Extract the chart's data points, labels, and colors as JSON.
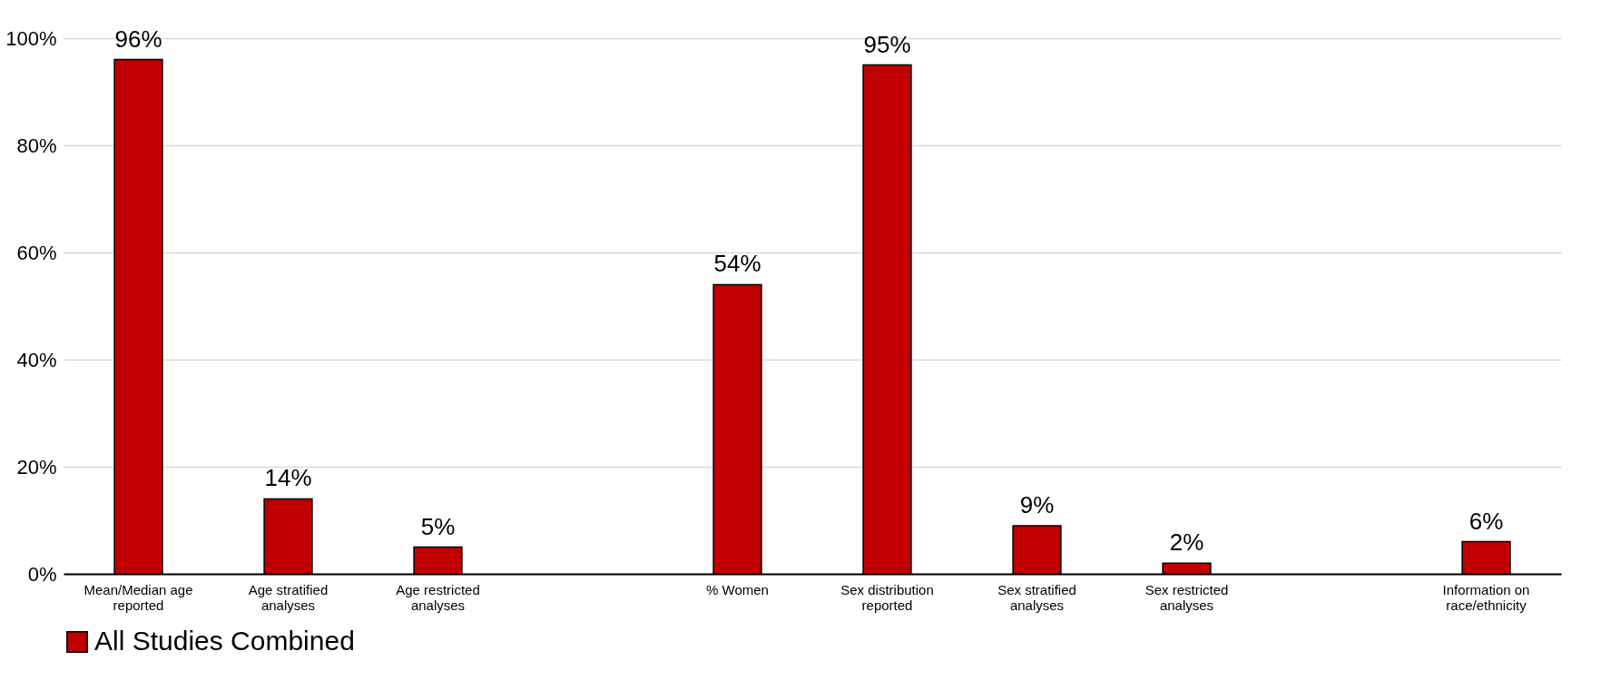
{
  "chart_data": {
    "type": "bar",
    "categories": [
      "Mean/Median age reported",
      "Age stratified analyses",
      "Age restricted analyses",
      null,
      "% Women",
      "Sex distribution reported",
      "Sex stratified analyses",
      "Sex restricted analyses",
      null,
      "Information on race/ethnicity"
    ],
    "series": [
      {
        "name": "All Studies Combined",
        "color": "#c00000",
        "values": [
          96,
          14,
          5,
          null,
          54,
          95,
          9,
          2,
          null,
          6
        ]
      }
    ],
    "value_labels": [
      "96%",
      "14%",
      "5%",
      null,
      "54%",
      "95%",
      "9%",
      "2%",
      null,
      "6%"
    ],
    "ylim": [
      0,
      100
    ],
    "yticks": [
      {
        "value": 0,
        "label": "0%"
      },
      {
        "value": 20,
        "label": "20%"
      },
      {
        "value": 40,
        "label": "40%"
      },
      {
        "value": 60,
        "label": "60%"
      },
      {
        "value": 80,
        "label": "80%"
      },
      {
        "value": 100,
        "label": "100%"
      }
    ],
    "grid": "y",
    "legend": "bottom"
  }
}
